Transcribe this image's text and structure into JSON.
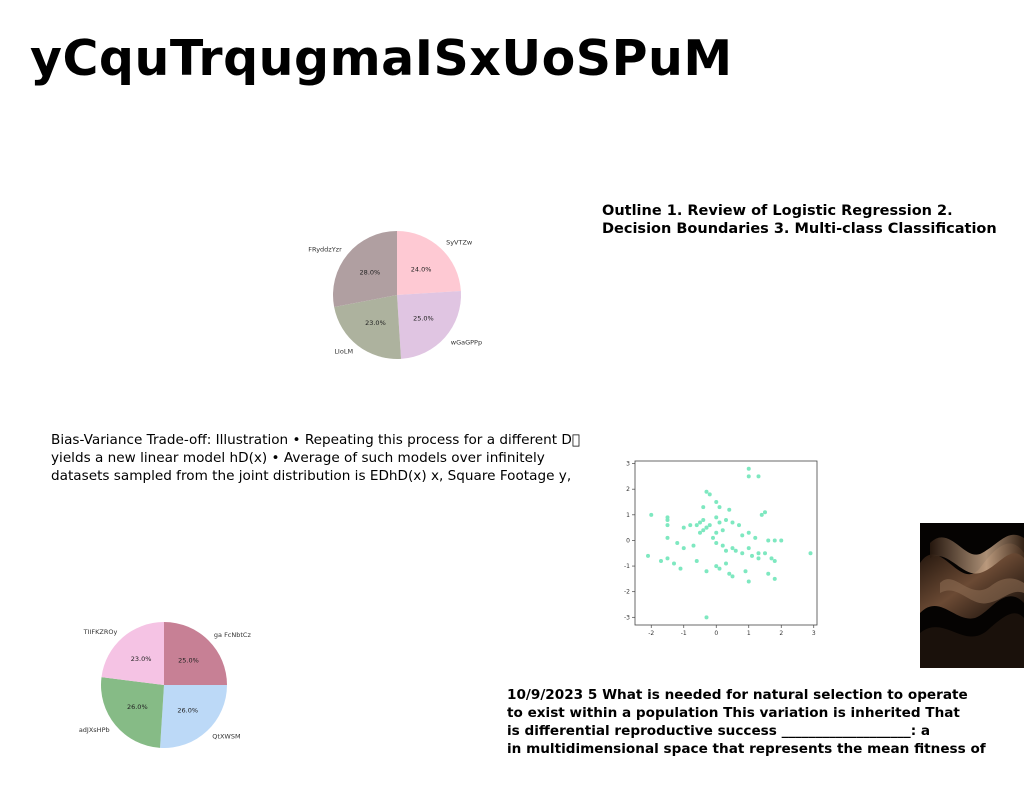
{
  "title": "yCquTrqugmaISxUoSPuM",
  "outline_text": "Outline 1. Review of Logistic Regression 2. Decision Boundaries 3. Multi-class Classification",
  "bias_text": "Bias-Variance Trade-off: Illustration • Repeating this process for a different D\u0000 yields a new linear model hD(x) • Average of such models over infinitely datasets sampled from the joint distribution is EDhD(x) x, Square Footage y,",
  "selection_lines": [
    "10/9/2023 5 What is needed for natural selection to operate",
    "to exist within a population This variation is inherited That",
    "is differential reproductive success ___________________: a",
    "in multidimensional space that represents the mean fitness of"
  ],
  "chart_data": [
    {
      "type": "pie",
      "slices": [
        {
          "label": "SyVTZw",
          "value": 24.0,
          "pct": "24.0%",
          "color": "#fec9d3"
        },
        {
          "label": "wGaGPPp",
          "value": 25.0,
          "pct": "25.0%",
          "color": "#e0c5e2"
        },
        {
          "label": "LIoLM",
          "value": 23.0,
          "pct": "23.0%",
          "color": "#adb29e"
        },
        {
          "label": "FRyddzYzr",
          "value": 28.0,
          "pct": "28.0%",
          "color": "#b09fa1"
        }
      ]
    },
    {
      "type": "pie",
      "slices": [
        {
          "label": "ga FcNbtCz",
          "value": 25.0,
          "pct": "25.0%",
          "color": "#c78095"
        },
        {
          "label": "QtXWSM",
          "value": 26.0,
          "pct": "26.0%",
          "color": "#bcd9f7"
        },
        {
          "label": "adJXsHPb",
          "value": 26.0,
          "pct": "26.0%",
          "color": "#86bb86"
        },
        {
          "label": "TIIFKZROy",
          "value": 23.0,
          "pct": "23.0%",
          "color": "#f5c3e4"
        }
      ]
    },
    {
      "type": "scatter",
      "color": "#7ee8c0",
      "xlim": [
        -2.5,
        3.1
      ],
      "ylim": [
        -3.3,
        3.1
      ],
      "xticks": [
        "-2",
        "-1",
        "0",
        "1",
        "2",
        "3"
      ],
      "yticks": [
        "3",
        "2",
        "1",
        "0",
        "-1",
        "-2",
        "-3"
      ],
      "x": [
        1.0,
        1.3,
        1.0,
        -0.3,
        -0.2,
        0.0,
        -0.4,
        0.1,
        0.4,
        1.5,
        1.4,
        -2.0,
        -1.5,
        -1.5,
        -1.0,
        -0.8,
        -0.6,
        -0.5,
        -0.4,
        -0.3,
        -0.2,
        0.0,
        0.1,
        0.2,
        0.3,
        0.5,
        0.7,
        0.8,
        1.0,
        1.2,
        1.6,
        1.8,
        2.0,
        -1.5,
        -1.5,
        -1.2,
        -1.0,
        -0.7,
        -0.5,
        -0.4,
        -0.3,
        -0.1,
        0.0,
        0.2,
        0.3,
        0.5,
        0.6,
        0.8,
        1.0,
        1.1,
        1.3,
        1.5,
        1.7,
        1.8,
        -2.1,
        -1.7,
        -1.5,
        -1.3,
        -1.1,
        -0.6,
        -0.3,
        0.0,
        0.1,
        0.3,
        0.4,
        0.5,
        0.9,
        1.3,
        1.6,
        1.8,
        1.0,
        -0.3,
        2.9,
        0.0
      ],
      "y": [
        2.8,
        2.5,
        2.5,
        1.9,
        1.8,
        1.5,
        1.3,
        1.3,
        1.2,
        1.1,
        1.0,
        1.0,
        0.9,
        0.8,
        0.5,
        0.6,
        0.6,
        0.7,
        0.8,
        0.5,
        0.6,
        0.9,
        0.7,
        0.4,
        0.8,
        0.7,
        0.6,
        0.2,
        0.3,
        0.1,
        0.0,
        0.0,
        0.0,
        0.6,
        0.1,
        -0.1,
        -0.3,
        -0.2,
        0.3,
        0.4,
        0.5,
        0.1,
        -0.1,
        -0.2,
        -0.4,
        -0.3,
        -0.4,
        -0.5,
        -0.3,
        -0.6,
        -0.7,
        -0.5,
        -0.7,
        -0.8,
        -0.6,
        -0.8,
        -0.7,
        -0.9,
        -1.1,
        -0.8,
        -1.2,
        -1.0,
        -1.1,
        -0.9,
        -1.3,
        -1.4,
        -1.2,
        -0.5,
        -1.3,
        -1.5,
        -1.6,
        -3.0,
        -0.5,
        0.3
      ]
    }
  ]
}
